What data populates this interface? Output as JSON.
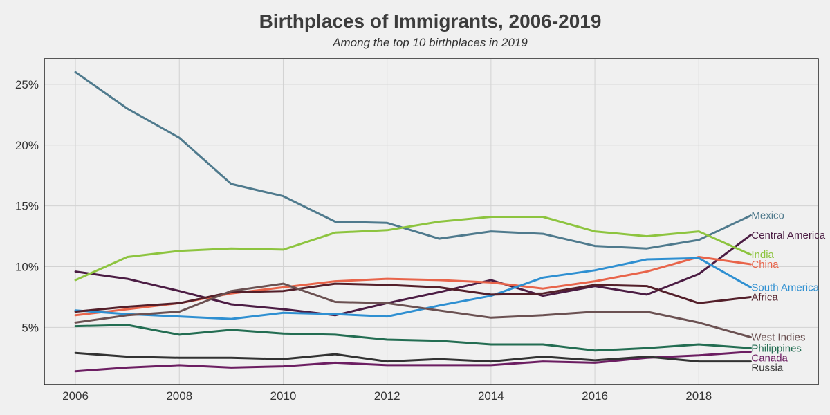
{
  "chart_data": {
    "type": "line",
    "title": "Birthplaces of Immigrants, 2006-2019",
    "subtitle": "Among the top 10 birthplaces in 2019",
    "xlabel": "",
    "ylabel": "",
    "x": [
      2006,
      2007,
      2008,
      2009,
      2010,
      2011,
      2012,
      2013,
      2014,
      2015,
      2016,
      2017,
      2018,
      2019
    ],
    "xlim": [
      2005.4,
      2020.3
    ],
    "ylim": [
      0.3,
      27.1
    ],
    "x_ticks": [
      2006,
      2008,
      2010,
      2012,
      2014,
      2016,
      2018
    ],
    "x_tick_labels": [
      "2006",
      "2008",
      "2010",
      "2012",
      "2014",
      "2016",
      "2018"
    ],
    "y_ticks": [
      5,
      10,
      15,
      20,
      25
    ],
    "y_tick_labels": [
      "5%",
      "10%",
      "15%",
      "20%",
      "25%"
    ],
    "grid": true,
    "legend": "direct labels at line ends",
    "series": [
      {
        "name": "Mexico",
        "color": "#4f7a8d",
        "values": [
          26.0,
          23.0,
          20.6,
          16.8,
          15.8,
          13.7,
          13.6,
          12.3,
          12.9,
          12.7,
          11.7,
          11.5,
          12.2,
          14.2
        ]
      },
      {
        "name": "Central America",
        "color": "#4b1c43",
        "values": [
          9.6,
          9.0,
          8.0,
          6.9,
          6.5,
          6.0,
          7.0,
          7.9,
          8.9,
          7.6,
          8.4,
          7.7,
          9.4,
          12.6
        ]
      },
      {
        "name": "India",
        "color": "#8dc43f",
        "values": [
          8.9,
          10.8,
          11.3,
          11.5,
          11.4,
          12.8,
          13.0,
          13.7,
          14.1,
          14.1,
          12.9,
          12.5,
          12.9,
          11.0
        ]
      },
      {
        "name": "China",
        "color": "#e8644a",
        "values": [
          6.0,
          6.5,
          7.0,
          7.8,
          8.3,
          8.8,
          9.0,
          8.9,
          8.7,
          8.2,
          8.8,
          9.6,
          10.8,
          10.2
        ]
      },
      {
        "name": "South America",
        "color": "#2e8fd1",
        "values": [
          6.4,
          6.1,
          5.9,
          5.7,
          6.2,
          6.1,
          5.9,
          6.8,
          7.6,
          9.1,
          9.7,
          10.6,
          10.7,
          8.3
        ]
      },
      {
        "name": "Africa",
        "color": "#531f2a",
        "values": [
          6.3,
          6.7,
          7.0,
          7.9,
          8.0,
          8.6,
          8.5,
          8.3,
          7.7,
          7.8,
          8.5,
          8.4,
          7.0,
          7.5
        ]
      },
      {
        "name": "West Indies",
        "color": "#6b5152",
        "values": [
          5.4,
          6.0,
          6.3,
          8.0,
          8.6,
          7.1,
          7.0,
          6.4,
          5.8,
          6.0,
          6.3,
          6.3,
          5.4,
          4.2
        ]
      },
      {
        "name": "Philippines",
        "color": "#236d52",
        "values": [
          5.1,
          5.2,
          4.4,
          4.8,
          4.5,
          4.4,
          4.0,
          3.9,
          3.6,
          3.6,
          3.1,
          3.3,
          3.6,
          3.3
        ]
      },
      {
        "name": "Canada",
        "color": "#6c1e62",
        "values": [
          1.4,
          1.7,
          1.9,
          1.7,
          1.8,
          2.1,
          1.9,
          1.9,
          1.9,
          2.2,
          2.1,
          2.5,
          2.7,
          3.0
        ]
      },
      {
        "name": "Russia",
        "color": "#323232",
        "values": [
          2.9,
          2.6,
          2.5,
          2.5,
          2.4,
          2.8,
          2.2,
          2.4,
          2.2,
          2.6,
          2.3,
          2.6,
          2.2,
          2.2
        ]
      }
    ]
  }
}
